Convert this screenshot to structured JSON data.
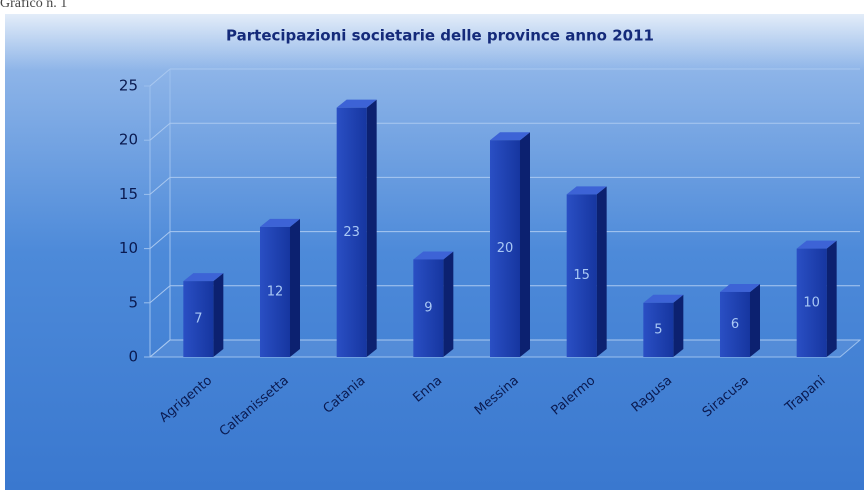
{
  "caption": "Grafico n. 1",
  "chart_data": {
    "type": "bar3d",
    "title": "Partecipazioni societarie delle province anno 2011",
    "categories": [
      "Agrigento",
      "Caltanissetta",
      "Catania",
      "Enna",
      "Messina",
      "Palermo",
      "Ragusa",
      "Siracusa",
      "Trapani"
    ],
    "values": [
      7,
      12,
      23,
      9,
      20,
      15,
      5,
      6,
      10
    ],
    "color": "#1f42b4",
    "ylim": [
      0,
      25
    ],
    "yticks": [
      0,
      5,
      10,
      15,
      20,
      25
    ],
    "grid": true
  }
}
